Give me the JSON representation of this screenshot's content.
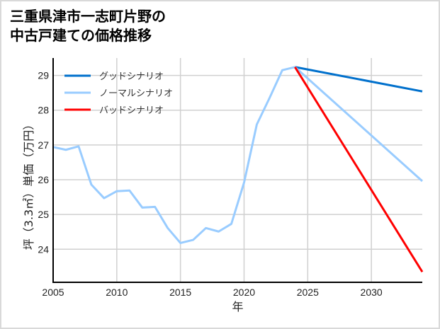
{
  "chart_data": {
    "type": "line",
    "title": "三重県津市一志町片野の\n中古戸建ての価格推移",
    "xlabel": "年",
    "ylabel": "坪（3.3㎡）単価（万円）",
    "xlim": [
      2005,
      2034
    ],
    "ylim": [
      23.05,
      29.5
    ],
    "xticks": [
      2005,
      2010,
      2015,
      2020,
      2025,
      2030
    ],
    "yticks": [
      24,
      25,
      26,
      27,
      28,
      29
    ],
    "grid": true,
    "legend_position": "top-left",
    "series": [
      {
        "name": "グッドシナリオ",
        "color": "#0070cc",
        "x": [
          2024,
          2034
        ],
        "y": [
          29.24,
          28.54
        ]
      },
      {
        "name": "ノーマルシナリオ",
        "color": "#99ccff",
        "x": [
          2005,
          2006,
          2007,
          2008,
          2009,
          2010,
          2011,
          2012,
          2013,
          2014,
          2015,
          2016,
          2017,
          2018,
          2019,
          2020,
          2021,
          2022,
          2023,
          2024,
          2034
        ],
        "y": [
          26.94,
          26.86,
          26.96,
          25.86,
          25.47,
          25.67,
          25.69,
          25.2,
          25.22,
          24.61,
          24.18,
          24.27,
          24.61,
          24.51,
          24.73,
          25.92,
          27.59,
          28.35,
          29.15,
          29.24,
          25.96
        ]
      },
      {
        "name": "バッドシナリオ",
        "color": "#ff0000",
        "x": [
          2024,
          2034
        ],
        "y": [
          29.24,
          23.35
        ]
      }
    ]
  }
}
